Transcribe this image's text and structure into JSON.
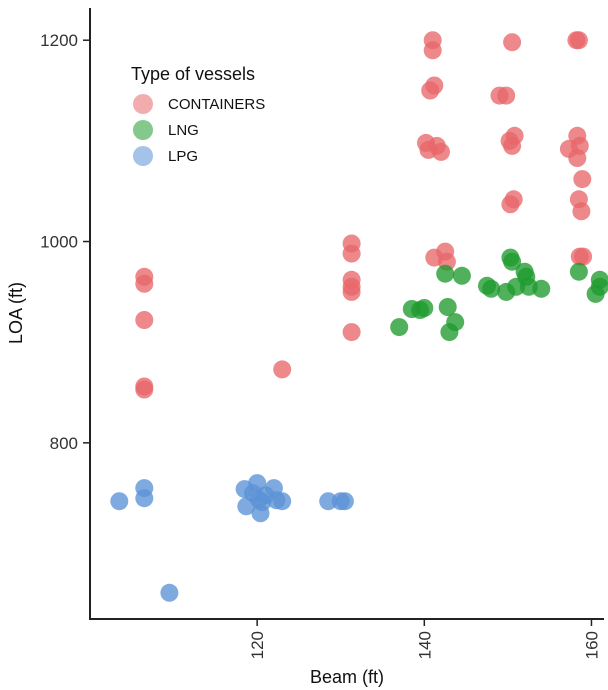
{
  "chart_data": {
    "type": "scatter",
    "xlabel": "Beam (ft)",
    "ylabel": "LOA (ft)",
    "xlim": [
      100,
      161.5
    ],
    "ylim": [
      625,
      1232
    ],
    "x_ticks": [
      120,
      140,
      160
    ],
    "y_ticks": [
      800,
      1000,
      1200
    ],
    "x_tick_labels": [
      "120",
      "140",
      "160"
    ],
    "y_tick_labels": [
      "800",
      "1000",
      "1200"
    ],
    "grid": false,
    "legend": {
      "title": "Type of vessels",
      "placement": "top-left"
    },
    "series": [
      {
        "name": "CONTAINERS",
        "color": "#e8676a",
        "points": [
          [
            106.5,
            965
          ],
          [
            106.5,
            958
          ],
          [
            106.5,
            922
          ],
          [
            106.5,
            856
          ],
          [
            106.5,
            853
          ],
          [
            123,
            873
          ],
          [
            131.3,
            998
          ],
          [
            131.3,
            988
          ],
          [
            131.3,
            962
          ],
          [
            131.3,
            955
          ],
          [
            131.3,
            950
          ],
          [
            131.3,
            910
          ],
          [
            140.2,
            1098
          ],
          [
            140.5,
            1091
          ],
          [
            140.7,
            1150
          ],
          [
            141,
            1200
          ],
          [
            141,
            1190
          ],
          [
            141.2,
            1155
          ],
          [
            141.5,
            1095
          ],
          [
            142,
            1089
          ],
          [
            141.2,
            984
          ],
          [
            142.5,
            990
          ],
          [
            142.7,
            980
          ],
          [
            149,
            1145
          ],
          [
            149.8,
            1145
          ],
          [
            150.2,
            1100
          ],
          [
            150.5,
            1095
          ],
          [
            150.8,
            1105
          ],
          [
            150.3,
            1037
          ],
          [
            150.7,
            1042
          ],
          [
            150.5,
            1198
          ],
          [
            157.3,
            1092
          ],
          [
            158.2,
            1200
          ],
          [
            158.5,
            1200
          ],
          [
            158.3,
            1105
          ],
          [
            158.6,
            1095
          ],
          [
            158.3,
            1083
          ],
          [
            158.5,
            1042
          ],
          [
            158.8,
            1030
          ],
          [
            158.9,
            1062
          ],
          [
            158.6,
            985
          ],
          [
            159,
            985
          ]
        ]
      },
      {
        "name": "LNG",
        "color": "#1f9a2e",
        "points": [
          [
            137,
            915
          ],
          [
            138.5,
            933
          ],
          [
            139.5,
            932
          ],
          [
            140,
            934
          ],
          [
            142.5,
            968
          ],
          [
            142.8,
            935
          ],
          [
            143,
            910
          ],
          [
            143.7,
            920
          ],
          [
            144.5,
            966
          ],
          [
            147.5,
            956
          ],
          [
            148,
            953
          ],
          [
            149.8,
            950
          ],
          [
            150.3,
            984
          ],
          [
            150.5,
            980
          ],
          [
            151,
            955
          ],
          [
            152,
            970
          ],
          [
            152.2,
            965
          ],
          [
            152.5,
            955
          ],
          [
            154,
            953
          ],
          [
            158.5,
            970
          ],
          [
            160.5,
            948
          ],
          [
            161,
            955
          ],
          [
            161,
            962
          ]
        ]
      },
      {
        "name": "LPG",
        "color": "#5b92d6",
        "points": [
          [
            103.5,
            742
          ],
          [
            106.5,
            755
          ],
          [
            106.5,
            745
          ],
          [
            109.5,
            651
          ],
          [
            118.5,
            754
          ],
          [
            118.7,
            737
          ],
          [
            119.5,
            750
          ],
          [
            120,
            760
          ],
          [
            120.2,
            744
          ],
          [
            120.4,
            730
          ],
          [
            120.6,
            741
          ],
          [
            121,
            748
          ],
          [
            122,
            755
          ],
          [
            122.3,
            743
          ],
          [
            123,
            742
          ],
          [
            128.5,
            742
          ],
          [
            130,
            742
          ],
          [
            130.5,
            742
          ]
        ]
      }
    ]
  }
}
